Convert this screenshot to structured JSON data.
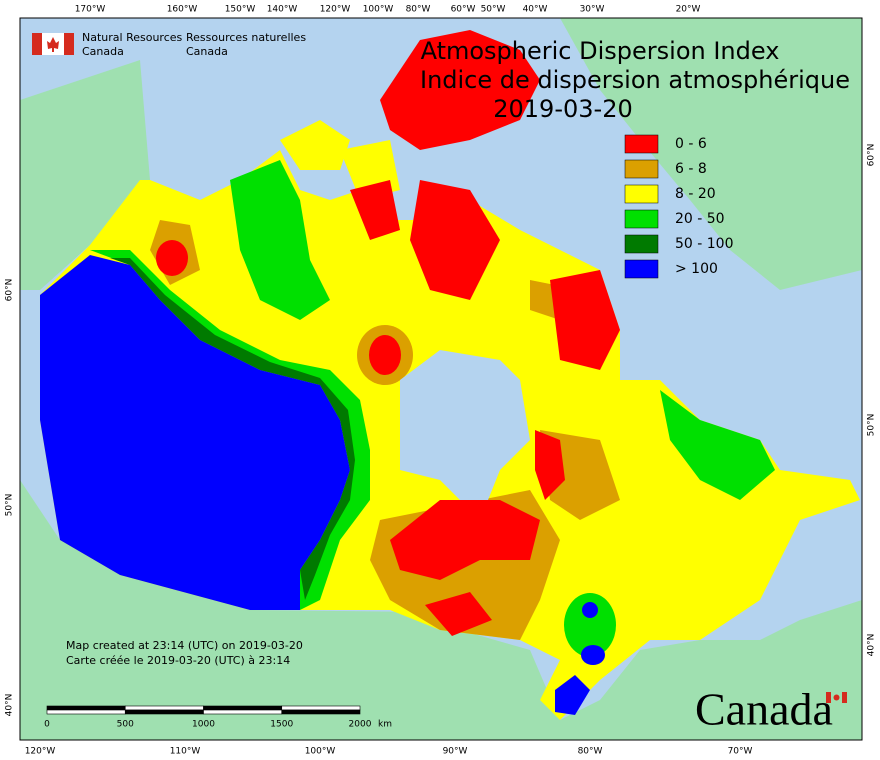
{
  "header": {
    "agency_en": [
      "Natural Resources",
      "Canada"
    ],
    "agency_fr": [
      "Ressources naturelles",
      "Canada"
    ],
    "title_en": "Atmospheric Dispersion Index",
    "title_fr": "Indice de dispersion atmosphérique",
    "date": "2019-03-20"
  },
  "legend": [
    {
      "label": "0 - 6",
      "color": "#ff0000"
    },
    {
      "label": "6 - 8",
      "color": "#dba000"
    },
    {
      "label": "8 - 20",
      "color": "#ffff00"
    },
    {
      "label": "20 - 50",
      "color": "#00e000"
    },
    {
      "label": "50 - 100",
      "color": "#007a00"
    },
    {
      "label": "> 100",
      "color": "#0000ff"
    }
  ],
  "graticule": {
    "top": [
      "170°W",
      "160°W",
      "150°W",
      "140°W",
      "120°W",
      "100°W",
      "80°W",
      "60°W",
      "50°W",
      "40°W",
      "30°W",
      "20°W"
    ],
    "bottom": [
      "120°W",
      "110°W",
      "100°W",
      "90°W",
      "80°W",
      "70°W"
    ],
    "left": [
      "60°N",
      "50°N",
      "40°N"
    ],
    "right": [
      "60°N",
      "50°N",
      "40°N"
    ]
  },
  "scale_bar": {
    "labels": [
      "0",
      "500",
      "1000",
      "1500",
      "2000"
    ],
    "unit": "km"
  },
  "credits": [
    "Map created at 23:14 (UTC) on 2019-03-20",
    "Carte créée le 2019-03-20 (UTC) à 23:14"
  ],
  "wordmark": "Canada"
}
